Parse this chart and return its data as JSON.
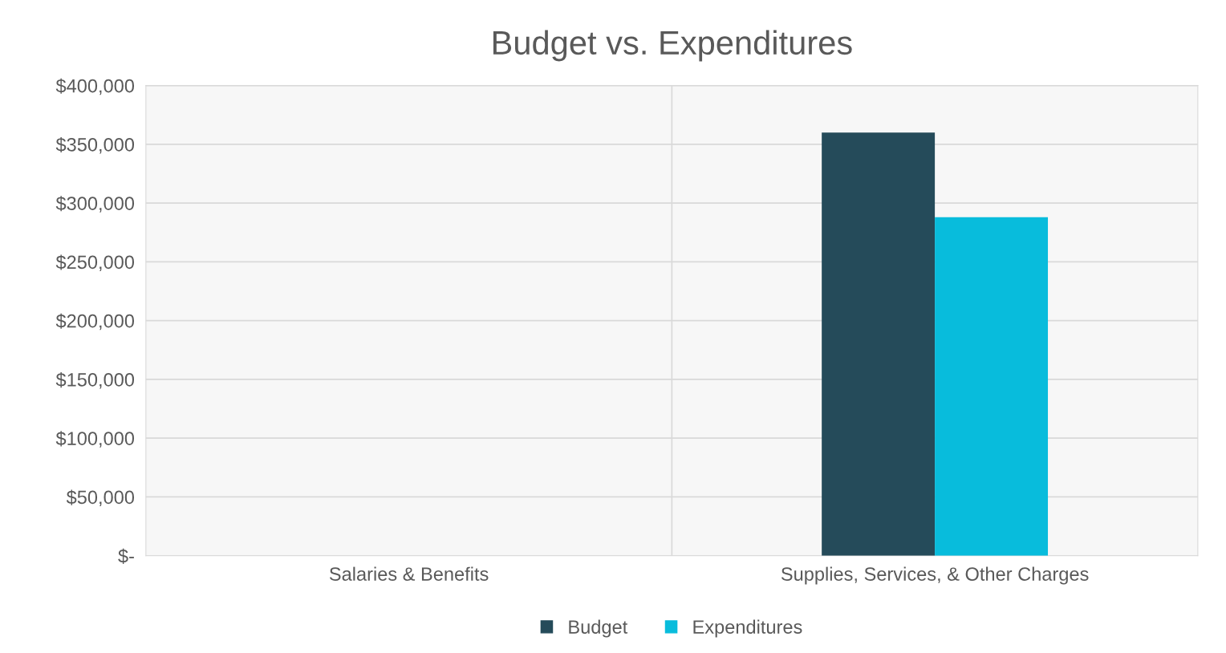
{
  "chart_data": {
    "type": "bar",
    "title": "Budget vs. Expenditures",
    "categories": [
      "Salaries & Benefits",
      "Supplies, Services, & Other Charges"
    ],
    "series": [
      {
        "name": "Budget",
        "color": "#254b5a",
        "values": [
          0,
          360000
        ]
      },
      {
        "name": "Expenditures",
        "color": "#08bcdc",
        "values": [
          0,
          288000
        ]
      }
    ],
    "ylim": [
      0,
      400000
    ],
    "yticks": [
      {
        "value": 0,
        "label": "$-"
      },
      {
        "value": 50000,
        "label": "$50,000"
      },
      {
        "value": 100000,
        "label": "$100,000"
      },
      {
        "value": 150000,
        "label": "$150,000"
      },
      {
        "value": 200000,
        "label": "$200,000"
      },
      {
        "value": 250000,
        "label": "$250,000"
      },
      {
        "value": 300000,
        "label": "$300,000"
      },
      {
        "value": 350000,
        "label": "$350,000"
      },
      {
        "value": 400000,
        "label": "$400,000"
      }
    ],
    "grid": true,
    "legend": "bottom"
  }
}
